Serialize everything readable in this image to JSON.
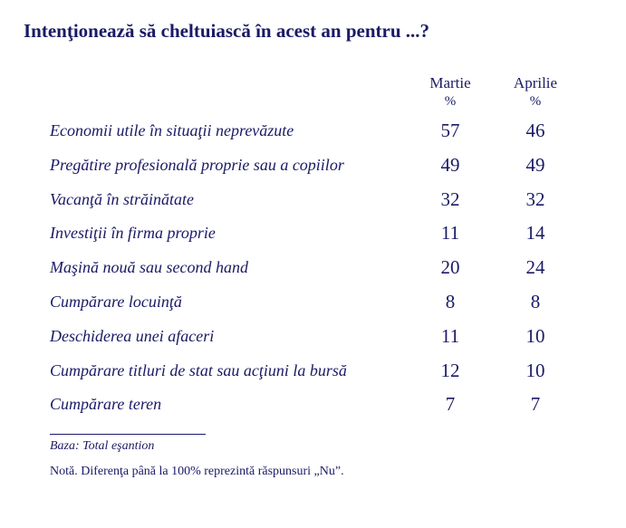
{
  "title": "Intenţionează să cheltuiască în acest an pentru ...?",
  "columns": [
    {
      "label": "Martie",
      "unit": "%"
    },
    {
      "label": "Aprilie",
      "unit": "%"
    }
  ],
  "rows": [
    {
      "label": "Economii utile în situaţii neprevăzute",
      "martie": "57",
      "aprilie": "46"
    },
    {
      "label": "Pregătire profesională proprie sau a copiilor",
      "martie": "49",
      "aprilie": "49"
    },
    {
      "label": "Vacanţă în străinătate",
      "martie": "32",
      "aprilie": "32"
    },
    {
      "label": "Investiţii în firma proprie",
      "martie": "11",
      "aprilie": "14"
    },
    {
      "label": "Maşină nouă sau second hand",
      "martie": "20",
      "aprilie": "24"
    },
    {
      "label": "Cumpărare locuinţă",
      "martie": "8",
      "aprilie": "8"
    },
    {
      "label": "Deschiderea unei afaceri",
      "martie": "11",
      "aprilie": "10"
    },
    {
      "label": "Cumpărare titluri de stat sau acţiuni la bursă",
      "martie": "12",
      "aprilie": "10"
    },
    {
      "label": "Cumpărare teren",
      "martie": "7",
      "aprilie": "7"
    }
  ],
  "footnote_base": "Baza: Total eşantion",
  "footnote_note": "Notă. Diferenţa până la 100% reprezintă răspunsuri „Nu”."
}
